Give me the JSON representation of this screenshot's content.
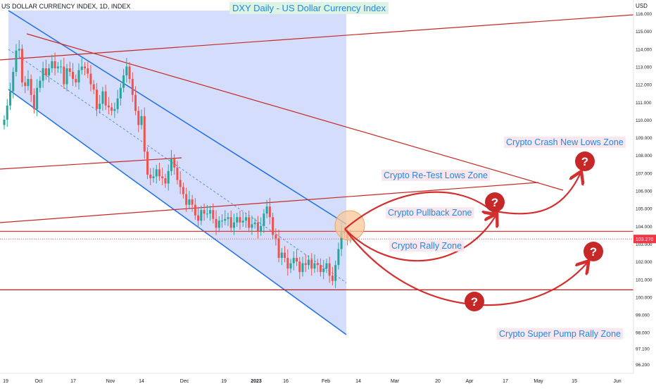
{
  "header": {
    "symbol_text": "US DOLLAR CURRENCY INDEX, 1D, INDEX"
  },
  "title": "DXY Daily - US Dollar Currency Index",
  "y_axis": {
    "unit": "USD",
    "ticks": [
      "116.000",
      "115.000",
      "114.000",
      "113.000",
      "112.000",
      "111.000",
      "110.000",
      "109.000",
      "108.000",
      "107.000",
      "106.000",
      "105.000",
      "104.000",
      "103.000",
      "102.000",
      "101.000",
      "100.000",
      "99.000",
      "98.000",
      "97.100",
      "96.200"
    ]
  },
  "x_axis": {
    "ticks": [
      "19",
      "Oct",
      "17",
      "Nov",
      "14",
      "Dec",
      "19",
      "2023",
      "16",
      "Feb",
      "14",
      "Mar",
      "20",
      "Apr",
      "17",
      "May",
      "15",
      "Jun"
    ]
  },
  "price_label": "103.270",
  "price_label_color": "#f23645",
  "colors": {
    "up": "#26a69a",
    "down": "#ef5350",
    "channel_fill": "#cdd8fb",
    "channel_line": "#1e6fe8",
    "trend_line": "#c62828",
    "arrow": "#d32f2f",
    "question": "#c62828"
  },
  "annotations": {
    "crash": "Crypto Crash  New Lows Zone",
    "retest": "Crypto Re-Test Lows Zone",
    "pullback": "Crypto Pullback Zone",
    "rally": "Crypto Rally Zone",
    "superpump": "Crypto Super Pump Rally Zone"
  },
  "chart_data": {
    "type": "candlestick",
    "title": "DXY Daily - US Dollar Currency Index",
    "ylabel": "USD",
    "ylim": [
      96.2,
      116.0
    ],
    "x_ticks": [
      "19",
      "Oct",
      "17",
      "Nov",
      "14",
      "Dec",
      "19",
      "2023",
      "16",
      "Feb",
      "14",
      "Mar",
      "20",
      "Apr",
      "17",
      "May",
      "15",
      "Jun"
    ],
    "last_price": 103.27,
    "series": [
      {
        "close": [
          110.0,
          110.8,
          111.6,
          112.7,
          113.9,
          114.0,
          112.1,
          111.9,
          112.3,
          111.4,
          110.6,
          111.8,
          112.2,
          112.9,
          112.5,
          112.9,
          113.3,
          112.9,
          113.0,
          113.0,
          112.0,
          112.9,
          112.7,
          112.3,
          112.1,
          112.8,
          113.0,
          112.9,
          112.6,
          112.0,
          111.7,
          110.6,
          110.9,
          111.6,
          110.8,
          110.7,
          110.5,
          110.6,
          111.2,
          111.8,
          112.5,
          113.0,
          112.3,
          111.4,
          110.5,
          109.7,
          110.2,
          108.2,
          106.9,
          106.7,
          106.8,
          107.2,
          106.8,
          106.7,
          106.4,
          107.1,
          107.8,
          107.3,
          106.6,
          106.2,
          105.8,
          105.2,
          105.5,
          105.2,
          104.6,
          104.3,
          104.9,
          104.7,
          104.7,
          104.9,
          104.4,
          103.9,
          104.3,
          104.3,
          104.4,
          104.5,
          103.9,
          104.2,
          104.5,
          104.2,
          104.3,
          104.5,
          103.9,
          104.1,
          104.2,
          103.7,
          104.0,
          104.7,
          105.1,
          104.5,
          103.5,
          103.3,
          102.2,
          102.5,
          102.2,
          101.6,
          101.9,
          102.2,
          102.0,
          101.4,
          101.9,
          101.8,
          102.1,
          101.6,
          101.9,
          101.8,
          101.4,
          101.6,
          101.9,
          101.2,
          100.9,
          101.8,
          102.7,
          103.7,
          103.6,
          103.3,
          103.3
        ]
      }
    ],
    "channel_mid": [
      114.5,
      100.8
    ],
    "horizontal_levels": [
      103.7,
      100.4
    ]
  }
}
